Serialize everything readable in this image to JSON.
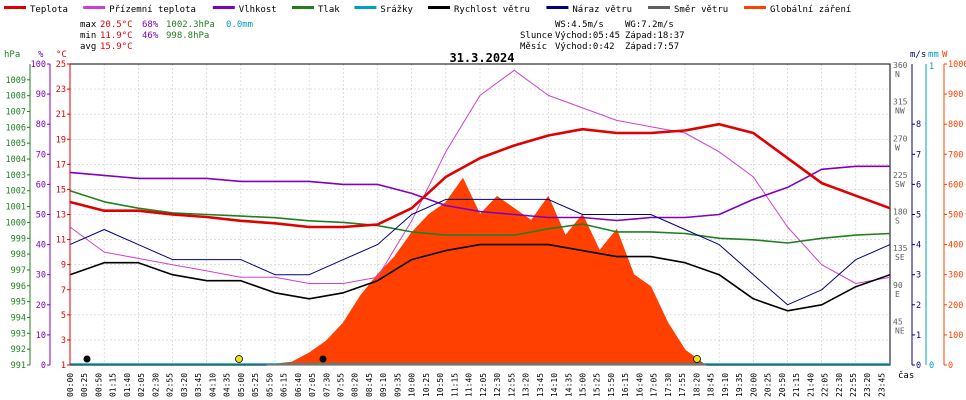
{
  "legend": [
    {
      "label": "Teplota",
      "color": "#e00000"
    },
    {
      "label": "Přízemní teplota",
      "color": "#d040d0"
    },
    {
      "label": "Vlhkost",
      "color": "#8000c0"
    },
    {
      "label": "Tlak",
      "color": "#208020"
    },
    {
      "label": "Srážky",
      "color": "#00a0c0"
    },
    {
      "label": "Rychlost větru",
      "color": "#000000"
    },
    {
      "label": "Náraz větru",
      "color": "#000080"
    },
    {
      "label": "Směr větru",
      "color": "#606060"
    },
    {
      "label": "Globální záření",
      "color": "#ff4000"
    }
  ],
  "stats": {
    "max_label": "max",
    "max_temp": "20.5°C",
    "max_hum": "68%",
    "max_press": "1002.3hPa",
    "max_rain": "0.0mm",
    "min_label": "min",
    "min_temp": "11.9°C",
    "min_hum": "46%",
    "min_press": "998.8hPa",
    "avg_label": "avg",
    "avg_temp": "15.9°C"
  },
  "sun": {
    "ws": "WS:4.5m/s",
    "wg": "WG:7.2m/s",
    "sun_label": "Slunce",
    "sunrise": "Východ:05:45",
    "sunset": "Západ:18:37",
    "moon_label": "Měsíc",
    "moonrise": "Východ:0:42",
    "moonset": "Západ:7:57"
  },
  "units": {
    "hpa": "hPa",
    "pct": "%",
    "degc": "°C",
    "ms": "m/s",
    "mm": "mm",
    "w": "W",
    "cas": "čas"
  },
  "chart_data": {
    "type": "line",
    "title": "31.3.2024",
    "axes": {
      "hpa": {
        "min": 991,
        "max": 1010,
        "ticks": [
          991,
          992,
          993,
          994,
          995,
          996,
          997,
          998,
          999,
          1000,
          1001,
          1002,
          1003,
          1004,
          1005,
          1006,
          1007,
          1008,
          1009
        ]
      },
      "pct": {
        "min": 0,
        "max": 100,
        "ticks": [
          0,
          10,
          20,
          30,
          40,
          50,
          60,
          70,
          80,
          90,
          100
        ]
      },
      "degc": {
        "min": 1,
        "max": 25,
        "ticks": [
          1,
          3,
          5,
          7,
          9,
          11,
          13,
          15,
          17,
          19,
          21,
          23,
          25
        ]
      },
      "ms": {
        "min": 0,
        "max": 10,
        "ticks": [
          0,
          1,
          2,
          3,
          4,
          5,
          6,
          7,
          8
        ]
      },
      "mm": {
        "ticks": [
          0,
          1
        ]
      },
      "w": {
        "min": 0,
        "max": 1000,
        "ticks": [
          0,
          100,
          200,
          300,
          400,
          500,
          600,
          700,
          800,
          900,
          1000
        ]
      },
      "dir": {
        "ticks": [
          {
            "v": 45,
            "l": "NE"
          },
          {
            "v": 90,
            "l": "E"
          },
          {
            "v": 135,
            "l": "SE"
          },
          {
            "v": 180,
            "l": "S"
          },
          {
            "v": 225,
            "l": "SW"
          },
          {
            "v": 270,
            "l": "W"
          },
          {
            "v": 315,
            "l": "NW"
          },
          {
            "v": 360,
            "l": "N"
          }
        ]
      }
    },
    "x_labels": [
      "00:00",
      "00:25",
      "00:50",
      "01:15",
      "01:40",
      "02:05",
      "02:30",
      "02:55",
      "03:20",
      "03:45",
      "04:10",
      "04:35",
      "05:00",
      "05:25",
      "05:50",
      "06:15",
      "06:40",
      "07:05",
      "07:30",
      "07:55",
      "08:20",
      "08:45",
      "09:10",
      "09:35",
      "10:00",
      "10:25",
      "10:50",
      "11:15",
      "11:40",
      "12:05",
      "12:30",
      "12:55",
      "13:20",
      "13:45",
      "14:10",
      "14:35",
      "15:00",
      "15:25",
      "15:50",
      "16:15",
      "16:40",
      "17:05",
      "17:30",
      "17:55",
      "18:20",
      "18:45",
      "19:10",
      "19:35",
      "20:00",
      "20:25",
      "20:50",
      "21:15",
      "21:40",
      "22:05",
      "22:30",
      "22:55",
      "23:20",
      "23:45"
    ],
    "series": [
      {
        "name": "Teplota",
        "unit": "°C",
        "color": "#e00000",
        "x": [
          0,
          1,
          2,
          3,
          4,
          5,
          6,
          7,
          8,
          9,
          10,
          11,
          12,
          13,
          14,
          15,
          16,
          17,
          18,
          19,
          20,
          21,
          22,
          23,
          24
        ],
        "y": [
          14.0,
          13.3,
          13.3,
          13.0,
          12.8,
          12.5,
          12.3,
          12.0,
          12.0,
          12.2,
          13.5,
          16.0,
          17.5,
          18.5,
          19.3,
          19.8,
          19.5,
          19.5,
          19.7,
          20.2,
          19.5,
          17.5,
          15.5,
          14.5,
          13.5
        ]
      },
      {
        "name": "Přízemní teplota",
        "unit": "°C",
        "color": "#d040d0",
        "x": [
          0,
          1,
          2,
          3,
          4,
          5,
          6,
          7,
          8,
          9,
          10,
          11,
          12,
          13,
          14,
          15,
          16,
          17,
          18,
          19,
          20,
          21,
          22,
          23,
          24
        ],
        "y": [
          12.0,
          10.0,
          9.5,
          9.0,
          8.5,
          8.0,
          8.0,
          7.5,
          7.5,
          8.0,
          12.5,
          18.0,
          22.5,
          24.5,
          22.5,
          21.5,
          20.5,
          20.0,
          19.5,
          18.0,
          16.0,
          12.0,
          9.0,
          7.5,
          8.0
        ]
      },
      {
        "name": "Vlhkost",
        "unit": "%",
        "color": "#8000c0",
        "x": [
          0,
          1,
          2,
          3,
          4,
          5,
          6,
          7,
          8,
          9,
          10,
          11,
          12,
          13,
          14,
          15,
          16,
          17,
          18,
          19,
          20,
          21,
          22,
          23,
          24
        ],
        "y": [
          64,
          63,
          62,
          62,
          62,
          61,
          61,
          61,
          60,
          60,
          57,
          53,
          51,
          50,
          49,
          49,
          48,
          49,
          49,
          50,
          55,
          59,
          65,
          66,
          66
        ]
      },
      {
        "name": "Tlak",
        "unit": "hPa",
        "color": "#208020",
        "x": [
          0,
          1,
          2,
          3,
          4,
          5,
          6,
          7,
          8,
          9,
          10,
          11,
          12,
          13,
          14,
          15,
          16,
          17,
          18,
          19,
          20,
          21,
          22,
          23,
          24
        ],
        "y": [
          1002.0,
          1001.3,
          1000.9,
          1000.6,
          1000.5,
          1000.4,
          1000.3,
          1000.1,
          1000.0,
          999.8,
          999.4,
          999.2,
          999.2,
          999.2,
          999.6,
          999.9,
          999.4,
          999.4,
          999.3,
          999.0,
          998.9,
          998.7,
          999.0,
          999.2,
          999.3
        ]
      },
      {
        "name": "Rychlost větru",
        "unit": "m/s",
        "color": "#000000",
        "x": [
          0,
          1,
          2,
          3,
          4,
          5,
          6,
          7,
          8,
          9,
          10,
          11,
          12,
          13,
          14,
          15,
          16,
          17,
          18,
          19,
          20,
          21,
          22,
          23,
          24
        ],
        "y": [
          3.0,
          3.4,
          3.4,
          3.0,
          2.8,
          2.8,
          2.4,
          2.2,
          2.4,
          2.8,
          3.5,
          3.8,
          4.0,
          4.0,
          4.0,
          3.8,
          3.6,
          3.6,
          3.4,
          3.0,
          2.2,
          1.8,
          2.0,
          2.6,
          3.0
        ]
      },
      {
        "name": "Náraz větru",
        "unit": "m/s",
        "color": "#000080",
        "x": [
          0,
          1,
          2,
          3,
          4,
          5,
          6,
          7,
          8,
          9,
          10,
          11,
          12,
          13,
          14,
          15,
          16,
          17,
          18,
          19,
          20,
          21,
          22,
          23,
          24
        ],
        "y": [
          4.0,
          4.5,
          4.0,
          3.5,
          3.5,
          3.5,
          3.0,
          3.0,
          3.5,
          4.0,
          5.0,
          5.5,
          5.5,
          5.5,
          5.5,
          5.0,
          5.0,
          5.0,
          4.5,
          4.0,
          3.0,
          2.0,
          2.5,
          3.5,
          4.0
        ]
      },
      {
        "name": "Globální záření",
        "unit": "W",
        "color": "#ff4000",
        "x": [
          5.75,
          6.5,
          7,
          7.5,
          8,
          8.5,
          9,
          9.5,
          10,
          10.5,
          11,
          11.5,
          12,
          12.5,
          13,
          13.5,
          14,
          14.5,
          15,
          15.5,
          16,
          16.5,
          17,
          17.5,
          18,
          18.6
        ],
        "y": [
          0,
          10,
          40,
          80,
          140,
          230,
          300,
          360,
          440,
          500,
          540,
          620,
          500,
          560,
          520,
          480,
          560,
          430,
          500,
          380,
          450,
          300,
          260,
          140,
          50,
          0
        ]
      }
    ]
  }
}
